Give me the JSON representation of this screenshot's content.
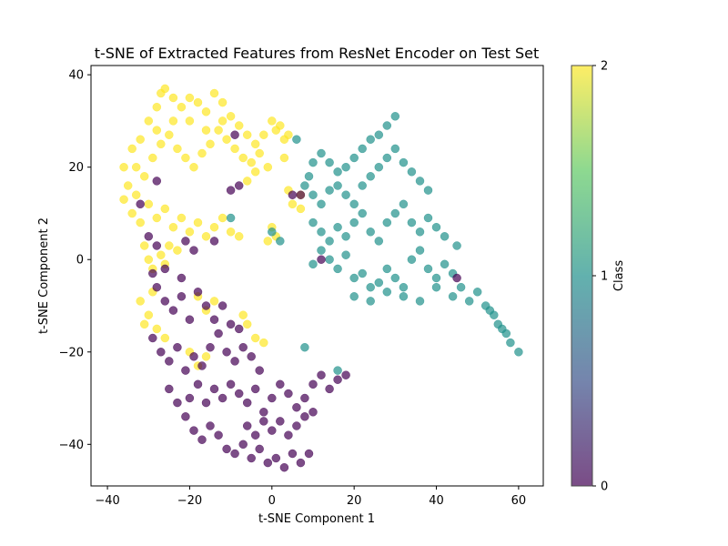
{
  "chart_data": {
    "type": "scatter",
    "title": "t-SNE of Extracted Features from ResNet Encoder on Test Set",
    "xlabel": "t-SNE Component 1",
    "ylabel": "t-SNE Component 2",
    "xlim": [
      -44,
      66
    ],
    "ylim": [
      -49,
      42
    ],
    "xticks": [
      -40,
      -20,
      0,
      20,
      40,
      60
    ],
    "yticks": [
      -40,
      -20,
      0,
      20,
      40
    ],
    "grid": false,
    "marker_alpha": 0.7,
    "colorbar": {
      "label": "Class",
      "range": [
        0,
        2
      ],
      "ticks": [
        0,
        1,
        2
      ],
      "colormap": [
        "#440154",
        "#3b528b",
        "#21918c",
        "#5ec962",
        "#fde725"
      ]
    },
    "class_colors": {
      "0": "#440154",
      "1": "#21918c",
      "2": "#fde725"
    },
    "series": [
      {
        "class": 2,
        "color": "#fde725",
        "points": [
          [
            -36,
            20
          ],
          [
            -34,
            24
          ],
          [
            -32,
            26
          ],
          [
            -30,
            30
          ],
          [
            -28,
            33
          ],
          [
            -27,
            36
          ],
          [
            -26,
            37
          ],
          [
            -24,
            35
          ],
          [
            -22,
            33
          ],
          [
            -20,
            35
          ],
          [
            -18,
            34
          ],
          [
            -16,
            32
          ],
          [
            -14,
            36
          ],
          [
            -12,
            34
          ],
          [
            -10,
            31
          ],
          [
            -8,
            29
          ],
          [
            -6,
            27
          ],
          [
            -4,
            25
          ],
          [
            -2,
            27
          ],
          [
            0,
            30
          ],
          [
            2,
            29
          ],
          [
            3,
            26
          ],
          [
            4,
            27
          ],
          [
            -35,
            16
          ],
          [
            -33,
            14
          ],
          [
            -31,
            18
          ],
          [
            -29,
            22
          ],
          [
            -27,
            25
          ],
          [
            -25,
            27
          ],
          [
            -23,
            24
          ],
          [
            -21,
            22
          ],
          [
            -19,
            20
          ],
          [
            -17,
            23
          ],
          [
            -15,
            25
          ],
          [
            -13,
            28
          ],
          [
            -11,
            26
          ],
          [
            -9,
            24
          ],
          [
            -7,
            22
          ],
          [
            -5,
            21
          ],
          [
            -3,
            23
          ],
          [
            -1,
            20
          ],
          [
            -34,
            10
          ],
          [
            -32,
            8
          ],
          [
            -30,
            12
          ],
          [
            -28,
            9
          ],
          [
            -26,
            11
          ],
          [
            -24,
            7
          ],
          [
            -22,
            9
          ],
          [
            -20,
            6
          ],
          [
            -18,
            8
          ],
          [
            -16,
            5
          ],
          [
            -14,
            7
          ],
          [
            -12,
            9
          ],
          [
            -10,
            6
          ],
          [
            -8,
            5
          ],
          [
            -31,
            3
          ],
          [
            -30,
            0
          ],
          [
            -29,
            -2
          ],
          [
            -27,
            1
          ],
          [
            -26,
            -1
          ],
          [
            -25,
            3
          ],
          [
            -23,
            2
          ],
          [
            -32,
            -9
          ],
          [
            -30,
            -12
          ],
          [
            -28,
            -15
          ],
          [
            -26,
            -17
          ],
          [
            -29,
            -7
          ],
          [
            -31,
            -14
          ],
          [
            -18,
            -8
          ],
          [
            -16,
            -11
          ],
          [
            -14,
            -9
          ],
          [
            -7,
            -12
          ],
          [
            -6,
            -14
          ],
          [
            -4,
            -17
          ],
          [
            -2,
            -18
          ],
          [
            -20,
            -20
          ],
          [
            -18,
            -23
          ],
          [
            -16,
            -21
          ],
          [
            1,
            5
          ],
          [
            0,
            7
          ],
          [
            -1,
            4
          ],
          [
            1,
            28
          ],
          [
            3,
            22
          ],
          [
            4,
            15
          ],
          [
            5,
            12
          ],
          [
            7,
            14
          ],
          [
            7,
            11
          ],
          [
            -6,
            17
          ],
          [
            -4,
            19
          ],
          [
            -20,
            30
          ],
          [
            -16,
            28
          ],
          [
            -12,
            30
          ],
          [
            -24,
            30
          ],
          [
            -28,
            28
          ],
          [
            -33,
            20
          ],
          [
            -36,
            13
          ]
        ]
      },
      {
        "class": 1,
        "color": "#21918c",
        "points": [
          [
            30,
            31
          ],
          [
            28,
            29
          ],
          [
            26,
            27
          ],
          [
            24,
            26
          ],
          [
            22,
            24
          ],
          [
            20,
            22
          ],
          [
            18,
            20
          ],
          [
            16,
            19
          ],
          [
            14,
            21
          ],
          [
            12,
            23
          ],
          [
            10,
            21
          ],
          [
            9,
            18
          ],
          [
            8,
            16
          ],
          [
            10,
            14
          ],
          [
            12,
            12
          ],
          [
            14,
            15
          ],
          [
            16,
            16
          ],
          [
            18,
            14
          ],
          [
            20,
            12
          ],
          [
            22,
            16
          ],
          [
            24,
            18
          ],
          [
            26,
            20
          ],
          [
            28,
            22
          ],
          [
            30,
            24
          ],
          [
            32,
            21
          ],
          [
            34,
            19
          ],
          [
            36,
            17
          ],
          [
            38,
            15
          ],
          [
            10,
            8
          ],
          [
            12,
            6
          ],
          [
            14,
            4
          ],
          [
            16,
            7
          ],
          [
            18,
            5
          ],
          [
            20,
            8
          ],
          [
            22,
            10
          ],
          [
            24,
            6
          ],
          [
            26,
            4
          ],
          [
            28,
            8
          ],
          [
            30,
            10
          ],
          [
            32,
            12
          ],
          [
            34,
            8
          ],
          [
            36,
            6
          ],
          [
            38,
            9
          ],
          [
            40,
            7
          ],
          [
            42,
            5
          ],
          [
            10,
            -1
          ],
          [
            12,
            2
          ],
          [
            14,
            0
          ],
          [
            16,
            -2
          ],
          [
            18,
            1
          ],
          [
            20,
            -4
          ],
          [
            22,
            -3
          ],
          [
            24,
            -6
          ],
          [
            26,
            -5
          ],
          [
            28,
            -2
          ],
          [
            30,
            -4
          ],
          [
            32,
            -6
          ],
          [
            34,
            0
          ],
          [
            36,
            2
          ],
          [
            38,
            -2
          ],
          [
            40,
            -4
          ],
          [
            42,
            -1
          ],
          [
            44,
            -3
          ],
          [
            20,
            -8
          ],
          [
            24,
            -9
          ],
          [
            28,
            -7
          ],
          [
            32,
            -8
          ],
          [
            36,
            -9
          ],
          [
            40,
            -6
          ],
          [
            44,
            -8
          ],
          [
            46,
            -6
          ],
          [
            48,
            -9
          ],
          [
            50,
            -7
          ],
          [
            52,
            -10
          ],
          [
            54,
            -12
          ],
          [
            56,
            -15
          ],
          [
            58,
            -18
          ],
          [
            60,
            -20
          ],
          [
            57,
            -16
          ],
          [
            55,
            -14
          ],
          [
            53,
            -11
          ],
          [
            6,
            26
          ],
          [
            -10,
            9
          ],
          [
            0,
            6
          ],
          [
            8,
            -19
          ],
          [
            16,
            -24
          ],
          [
            2,
            4
          ],
          [
            45,
            3
          ]
        ]
      },
      {
        "class": 0,
        "color": "#440154",
        "points": [
          [
            -28,
            -6
          ],
          [
            -26,
            -9
          ],
          [
            -24,
            -11
          ],
          [
            -22,
            -8
          ],
          [
            -20,
            -13
          ],
          [
            -18,
            -7
          ],
          [
            -16,
            -10
          ],
          [
            -14,
            -13
          ],
          [
            -12,
            -10
          ],
          [
            -10,
            -14
          ],
          [
            -8,
            -15
          ],
          [
            -29,
            -17
          ],
          [
            -27,
            -20
          ],
          [
            -25,
            -22
          ],
          [
            -23,
            -19
          ],
          [
            -21,
            -24
          ],
          [
            -19,
            -21
          ],
          [
            -17,
            -23
          ],
          [
            -15,
            -19
          ],
          [
            -13,
            -16
          ],
          [
            -11,
            -20
          ],
          [
            -9,
            -22
          ],
          [
            -7,
            -19
          ],
          [
            -5,
            -21
          ],
          [
            -3,
            -24
          ],
          [
            -25,
            -28
          ],
          [
            -23,
            -31
          ],
          [
            -21,
            -34
          ],
          [
            -19,
            -37
          ],
          [
            -17,
            -39
          ],
          [
            -15,
            -36
          ],
          [
            -13,
            -38
          ],
          [
            -11,
            -41
          ],
          [
            -9,
            -42
          ],
          [
            -7,
            -40
          ],
          [
            -5,
            -43
          ],
          [
            -3,
            -41
          ],
          [
            -1,
            -44
          ],
          [
            1,
            -43
          ],
          [
            3,
            -45
          ],
          [
            5,
            -42
          ],
          [
            7,
            -44
          ],
          [
            9,
            -42
          ],
          [
            -20,
            -30
          ],
          [
            -18,
            -27
          ],
          [
            -16,
            -31
          ],
          [
            -14,
            -28
          ],
          [
            -12,
            -30
          ],
          [
            -10,
            -27
          ],
          [
            -8,
            -29
          ],
          [
            -6,
            -31
          ],
          [
            -4,
            -28
          ],
          [
            -2,
            -33
          ],
          [
            0,
            -30
          ],
          [
            2,
            -27
          ],
          [
            4,
            -29
          ],
          [
            6,
            -32
          ],
          [
            8,
            -30
          ],
          [
            10,
            -27
          ],
          [
            12,
            -25
          ],
          [
            14,
            -28
          ],
          [
            16,
            -26
          ],
          [
            18,
            -25
          ],
          [
            -6,
            -36
          ],
          [
            -4,
            -38
          ],
          [
            -2,
            -35
          ],
          [
            0,
            -37
          ],
          [
            2,
            -35
          ],
          [
            4,
            -38
          ],
          [
            6,
            -36
          ],
          [
            8,
            -34
          ],
          [
            10,
            -33
          ],
          [
            -30,
            5
          ],
          [
            -28,
            3
          ],
          [
            -21,
            4
          ],
          [
            -19,
            2
          ],
          [
            -14,
            4
          ],
          [
            -10,
            15
          ],
          [
            -8,
            16
          ],
          [
            -9,
            27
          ],
          [
            -32,
            12
          ],
          [
            5,
            14
          ],
          [
            7,
            14
          ],
          [
            12,
            0
          ],
          [
            45,
            -4
          ],
          [
            -22,
            -4
          ],
          [
            -26,
            -2
          ],
          [
            -29,
            -3
          ],
          [
            -28,
            17
          ]
        ]
      }
    ]
  }
}
